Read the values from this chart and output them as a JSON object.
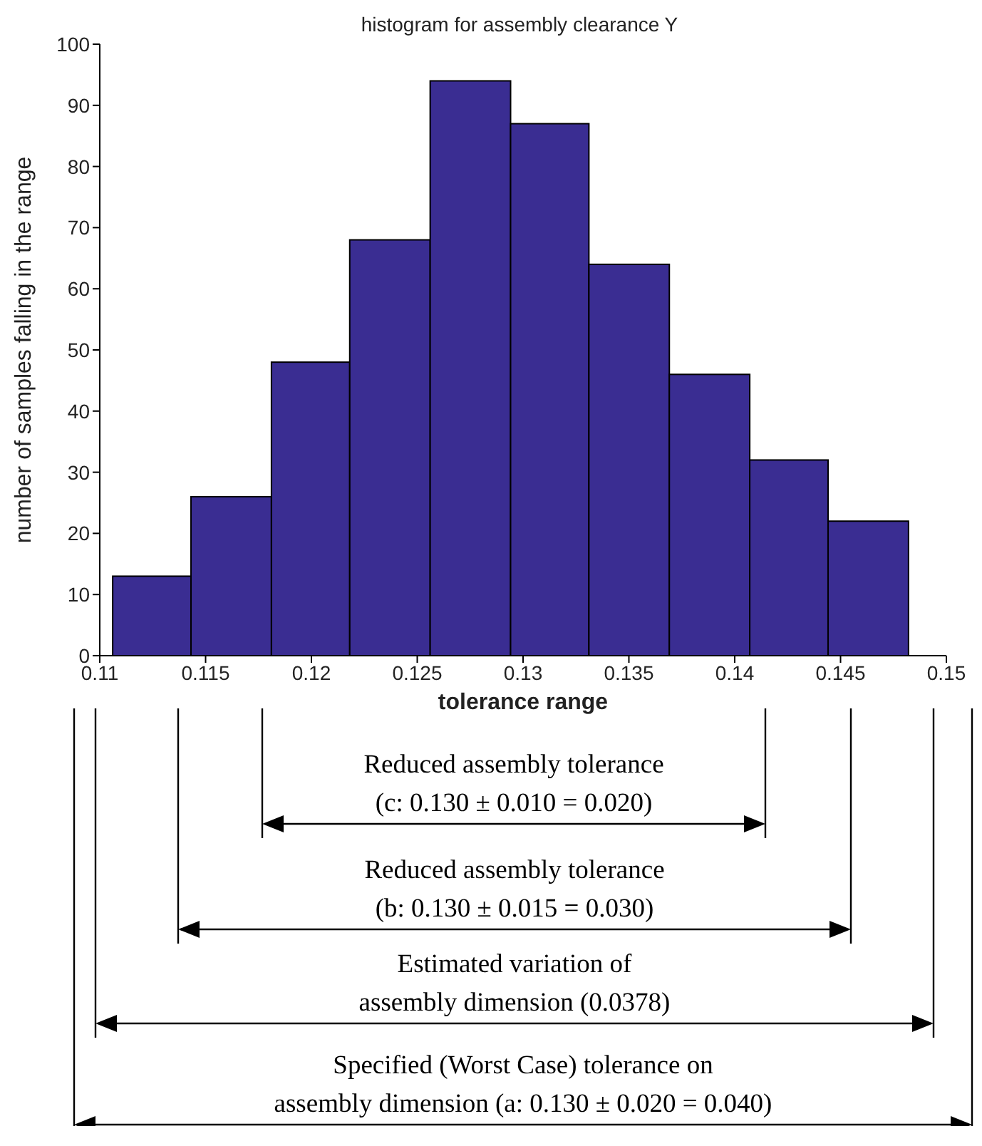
{
  "chart_data": {
    "type": "histogram",
    "title": "histogram for assembly clearance Y",
    "xlabel": "tolerance range",
    "ylabel": "number of samples falling in the range",
    "bins": [
      0.1106,
      0.1143,
      0.1181,
      0.1218,
      0.1256,
      0.1294,
      0.1331,
      0.1369,
      0.1407,
      0.1444,
      0.1482
    ],
    "values": [
      13,
      26,
      48,
      68,
      94,
      87,
      64,
      46,
      32,
      22
    ],
    "color": "#3a2d92",
    "xlim": [
      0.11,
      0.15
    ],
    "xticks": [
      0.11,
      0.115,
      0.12,
      0.125,
      0.13,
      0.135,
      0.14,
      0.145,
      0.15
    ],
    "ylim": [
      0,
      100
    ],
    "yticks": [
      0,
      10,
      20,
      30,
      40,
      50,
      60,
      70,
      80,
      90,
      100
    ],
    "grid": false,
    "legend": false,
    "annotations": [
      "Reduced assembly tolerance\n(c: 0.130 ± 0.010 = 0.020)",
      "Reduced assembly tolerance\n(b: 0.130 ± 0.015 = 0.030)",
      "Estimated variation of\nassembly dimension (0.0378)",
      "Specified (Worst Case) tolerance on\nassembly dimension (a: 0.130 ± 0.020 = 0.040)"
    ]
  }
}
